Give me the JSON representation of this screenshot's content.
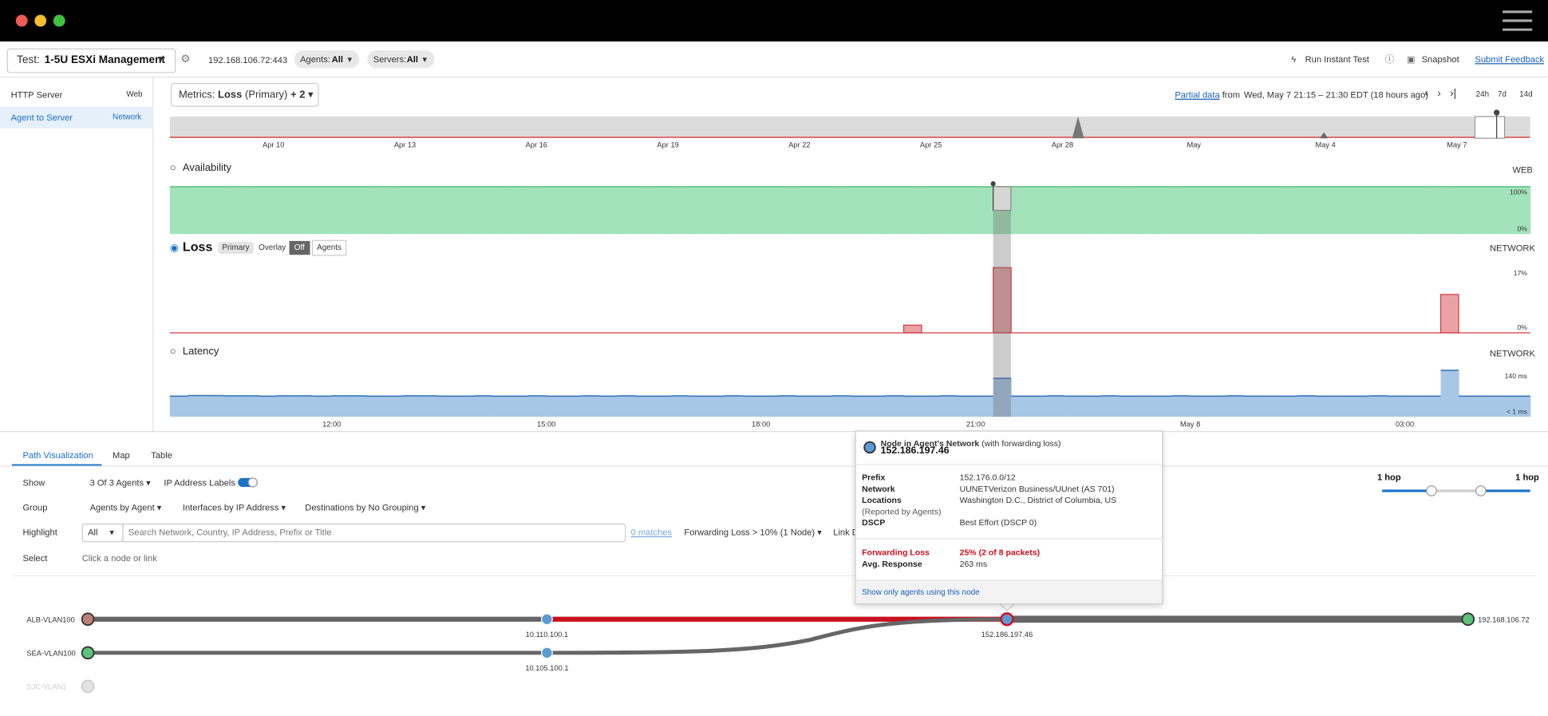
{
  "toolbar": {
    "test_label": "Test:",
    "test_name": "1-5U ESXi Management",
    "target": "192.168.106.72:443",
    "agents_label": "Agents:",
    "agents_value": "All",
    "servers_label": "Servers:",
    "servers_value": "All",
    "run_test": "Run Instant Test",
    "snapshot": "Snapshot",
    "feedback": "Submit Feedback"
  },
  "sidebar": [
    {
      "name": "HTTP Server",
      "kind": "Web"
    },
    {
      "name": "Agent to Server",
      "kind": "Network"
    }
  ],
  "metrics": {
    "label": "Metrics:",
    "primary": "Loss",
    "note": "(Primary)",
    "extra": "+ 2"
  },
  "range": {
    "partial": "Partial data",
    "from": "from",
    "window": "Wed, May 7 21:15 – 21:30 EDT (18 hours ago)",
    "spans": [
      "24h",
      "7d",
      "14d"
    ]
  },
  "overview_dates": [
    "Apr 10",
    "Apr 13",
    "Apr 16",
    "Apr 19",
    "Apr 22",
    "Apr 25",
    "Apr 28",
    "May",
    "May 4",
    "May 7"
  ],
  "availability": {
    "title": "Availability",
    "scope": "WEB",
    "yticks": [
      {
        "value": 100,
        "label": "100%"
      },
      {
        "value": 0,
        "label": "0%"
      }
    ],
    "values": [
      100,
      100,
      100,
      100,
      100,
      100,
      100,
      100,
      100,
      100,
      100,
      100,
      100,
      100,
      100,
      100,
      100,
      100,
      100,
      100,
      100,
      100,
      100,
      100,
      100,
      100,
      100,
      100,
      100,
      100,
      100,
      100,
      100,
      100,
      100,
      100,
      100,
      100,
      100,
      100,
      100,
      100,
      100,
      100,
      100,
      100,
      100,
      100,
      100,
      100,
      100,
      100,
      100,
      100,
      100,
      100,
      100,
      100,
      100,
      100,
      100,
      100,
      100,
      100,
      100,
      100,
      100,
      100,
      100,
      100,
      100,
      100,
      100,
      100,
      100,
      100
    ]
  },
  "loss": {
    "title": "Loss",
    "tag": "Primary",
    "overlay": "Overlay",
    "off": "Off",
    "agents": "Agents",
    "scope": "NETWORK",
    "yticks": [
      {
        "value": 17,
        "label": "17%"
      },
      {
        "value": 0,
        "label": "0%"
      }
    ],
    "values": [
      0,
      0,
      0,
      0,
      0,
      0,
      0,
      0,
      0,
      0,
      0,
      0,
      0,
      0,
      0,
      0,
      0,
      0,
      0,
      0,
      0,
      0,
      0,
      0,
      0,
      0,
      0,
      0,
      0,
      0,
      0,
      0,
      0,
      0,
      0,
      0,
      0,
      0,
      0,
      0,
      0,
      2,
      0,
      0,
      0,
      0,
      17,
      0,
      0,
      0,
      0,
      0,
      0,
      0,
      0,
      0,
      0,
      0,
      0,
      0,
      0,
      0,
      0,
      0,
      0,
      0,
      0,
      0,
      0,
      0,
      0,
      10,
      0,
      0,
      0,
      0
    ]
  },
  "latency": {
    "title": "Latency",
    "scope": "NETWORK",
    "yticks": [
      {
        "value": 140,
        "label": "140 ms"
      },
      {
        "value": 0,
        "label": "< 1 ms"
      }
    ],
    "values": [
      62,
      64,
      64,
      63,
      63,
      62,
      63,
      63,
      62,
      63,
      63,
      62,
      62,
      63,
      63,
      62,
      62,
      63,
      62,
      62,
      63,
      62,
      62,
      63,
      62,
      63,
      62,
      62,
      63,
      62,
      62,
      63,
      62,
      62,
      63,
      62,
      62,
      63,
      62,
      62,
      63,
      62,
      62,
      63,
      62,
      62,
      116,
      62,
      62,
      63,
      62,
      62,
      63,
      62,
      62,
      62,
      63,
      62,
      62,
      63,
      62,
      62,
      62,
      63,
      62,
      62,
      62,
      63,
      62,
      62,
      62,
      140,
      62,
      62,
      62,
      62
    ]
  },
  "time_axis": [
    "12:00",
    "15:00",
    "18:00",
    "21:00",
    "May 8",
    "03:00"
  ],
  "tabs": [
    "Path Visualization",
    "Map",
    "Table"
  ],
  "controls": {
    "show": "Show",
    "agents": "3 Of 3 Agents",
    "ip_labels": "IP Address Labels",
    "group": "Group",
    "group_options": [
      "Agents by Agent",
      "Interfaces by IP Address",
      "Destinations by No Grouping"
    ],
    "highlight": "Highlight",
    "highlight_select": "All",
    "search_placeholder": "Search Network, Country, IP Address, Prefix or Title",
    "matches": "0 matches",
    "forwarding": "Forwarding Loss > 10%  (1 Node)",
    "link": "Link D",
    "select": "Select",
    "select_hint": "Click a node or link"
  },
  "hops": [
    "1 hop",
    "1 hop"
  ],
  "popup": {
    "kind": "Node in Agent's Network",
    "qualifier": "(with forwarding loss)",
    "ip": "152.186.197.46",
    "rows": [
      {
        "label": "Prefix",
        "value": "152.176.0.0/12"
      },
      {
        "label": "Network",
        "value": "UUNETVerizon Business/UUnet (AS 701)"
      },
      {
        "label": "Locations",
        "value": "Washington D.C., District of Columbia, US"
      },
      {
        "label": "(Reported by Agents)",
        "value": ""
      },
      {
        "label": "DSCP",
        "value": "Best Effort (DSCP 0)"
      }
    ],
    "stats": [
      {
        "label": "Forwarding Loss",
        "value": "25% (2 of 8 packets)"
      },
      {
        "label": "Avg. Response",
        "value": "263 ms"
      }
    ],
    "action": "Show only agents using this node"
  },
  "path": {
    "agents": [
      "ALB-VLAN100",
      "SEA-VLAN100",
      "SJC-VLAN1"
    ],
    "hops": [
      "10.110.100.1",
      "10.105.100.1",
      "152.186.197.46"
    ],
    "target": "192.168.106.72"
  }
}
